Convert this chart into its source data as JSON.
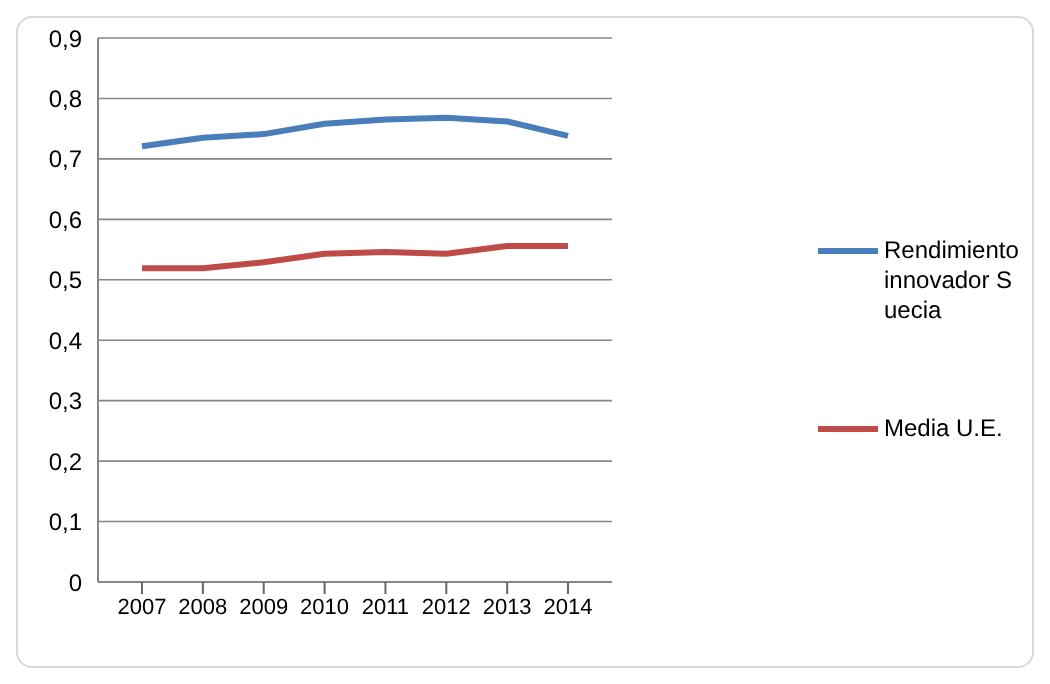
{
  "chart_data": {
    "type": "line",
    "categories": [
      "2007",
      "2008",
      "2009",
      "2010",
      "2011",
      "2012",
      "2013",
      "2014"
    ],
    "series": [
      {
        "name": "Rendimiento innovador Suecia",
        "color": "#4a7ebb",
        "values": [
          0.721,
          0.735,
          0.741,
          0.758,
          0.765,
          0.768,
          0.762,
          0.738
        ]
      },
      {
        "name": "Media U.E.",
        "color": "#be4b48",
        "values": [
          0.519,
          0.519,
          0.529,
          0.543,
          0.546,
          0.543,
          0.556,
          0.556
        ]
      }
    ],
    "ylim": [
      0,
      0.9
    ],
    "yticks": [
      {
        "value": 0,
        "label": "0"
      },
      {
        "value": 0.1,
        "label": "0,1"
      },
      {
        "value": 0.2,
        "label": "0,2"
      },
      {
        "value": 0.3,
        "label": "0,3"
      },
      {
        "value": 0.4,
        "label": "0,4"
      },
      {
        "value": 0.5,
        "label": "0,5"
      },
      {
        "value": 0.6,
        "label": "0,6"
      },
      {
        "value": 0.7,
        "label": "0,7"
      },
      {
        "value": 0.8,
        "label": "0,8"
      },
      {
        "value": 0.9,
        "label": "0,9"
      }
    ],
    "grid": "y",
    "legend": "right",
    "marker": "none",
    "line_style": "solid"
  }
}
